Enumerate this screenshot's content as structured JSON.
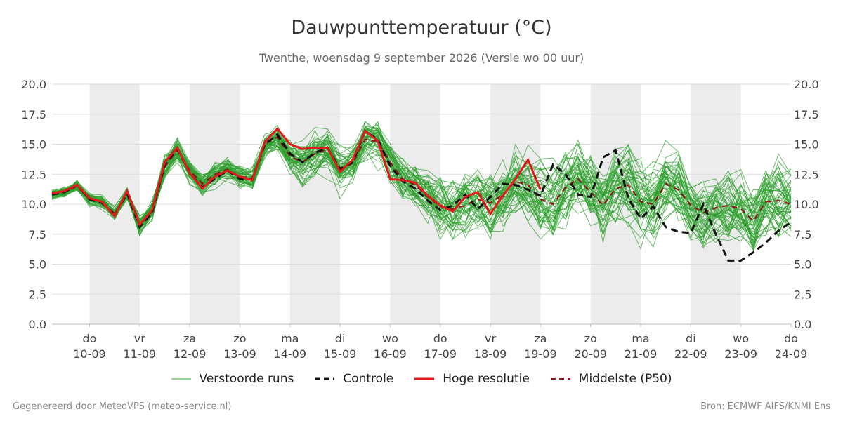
{
  "header": {
    "title": "Dauwpunttemperatuur (°C)",
    "subtitle": "Twenthe, woensdag  9 september 2026 (Versie wo 00 uur)"
  },
  "footer": {
    "left": "Gegenereerd door MeteoVPS (meteo-service.nl)",
    "right": "Bron: ECMWF AIFS/KNMI Ens"
  },
  "legend": [
    {
      "label": "Verstoorde runs",
      "color": "#2ca02c",
      "style": "solid-thin"
    },
    {
      "label": "Controle",
      "color": "#111111",
      "style": "dashed"
    },
    {
      "label": "Hoge resolutie",
      "color": "#e31a1c",
      "style": "solid-thick"
    },
    {
      "label": "Middelste (P50)",
      "color": "#8b1a1a",
      "style": "dashed"
    }
  ],
  "chart_data": {
    "type": "line",
    "ylim": [
      0,
      20
    ],
    "yticks": [
      "0.0",
      "2.5",
      "5.0",
      "7.5",
      "10.0",
      "12.5",
      "15.0",
      "17.5",
      "20.0"
    ],
    "xlim": [
      -0.75,
      14
    ],
    "day_ticks": [
      {
        "day": "do",
        "date": "10-09"
      },
      {
        "day": "vr",
        "date": "11-09"
      },
      {
        "day": "za",
        "date": "12-09"
      },
      {
        "day": "zo",
        "date": "13-09"
      },
      {
        "day": "ma",
        "date": "14-09"
      },
      {
        "day": "di",
        "date": "15-09"
      },
      {
        "day": "wo",
        "date": "16-09"
      },
      {
        "day": "do",
        "date": "17-09"
      },
      {
        "day": "vr",
        "date": "18-09"
      },
      {
        "day": "za",
        "date": "19-09"
      },
      {
        "day": "zo",
        "date": "20-09"
      },
      {
        "day": "ma",
        "date": "21-09"
      },
      {
        "day": "di",
        "date": "22-09"
      },
      {
        "day": "wo",
        "date": "23-09"
      },
      {
        "day": "do",
        "date": "24-09"
      }
    ],
    "shaded_days": [
      0,
      2,
      4,
      6,
      8,
      10,
      12
    ],
    "grid": true,
    "colors": {
      "ensemble": "#2ca02c",
      "control": "#111111",
      "hires": "#e31a1c",
      "median": "#8b1a1a",
      "shade": "#ececec",
      "grid": "#dddddd"
    },
    "series": [
      {
        "name": "Controle",
        "x": [
          -0.75,
          -0.5,
          -0.25,
          0,
          0.25,
          0.5,
          0.75,
          1,
          1.25,
          1.5,
          1.75,
          2,
          2.25,
          2.5,
          2.75,
          3,
          3.25,
          3.5,
          3.75,
          4,
          4.25,
          4.5,
          4.75,
          5,
          5.25,
          5.5,
          5.75,
          6,
          6.25,
          6.5,
          6.75,
          7,
          7.25,
          7.5,
          7.75,
          8,
          8.25,
          8.5,
          8.75,
          9,
          9.25,
          9.5,
          9.75,
          10,
          10.25,
          10.5,
          10.75,
          11,
          11.25,
          11.5,
          11.75,
          12,
          12.25,
          12.5,
          12.75,
          13,
          13.25,
          13.5,
          13.75,
          14
        ],
        "values": [
          10.8,
          11.0,
          11.6,
          10.4,
          10.1,
          9.1,
          10.9,
          8.1,
          9.3,
          13.3,
          14.6,
          12.6,
          11.4,
          12.1,
          12.8,
          12.1,
          12.1,
          15.0,
          15.8,
          14.2,
          13.5,
          14.3,
          14.7,
          12.9,
          13.5,
          16.1,
          15.4,
          13.2,
          11.9,
          11.3,
          10.3,
          9.5,
          9.9,
          10.8,
          9.6,
          10.6,
          11.7,
          11.6,
          11.2,
          10.7,
          13.3,
          12.5,
          10.8,
          10.6,
          13.9,
          14.5,
          10.5,
          8.8,
          9.8,
          8.1,
          7.7,
          7.6,
          10.0,
          7.5,
          5.3,
          5.3,
          6.0,
          6.8,
          7.8,
          8.5
        ]
      },
      {
        "name": "Hoge resolutie",
        "x": [
          -0.75,
          -0.5,
          -0.25,
          0,
          0.25,
          0.5,
          0.75,
          1,
          1.25,
          1.5,
          1.75,
          2,
          2.25,
          2.5,
          2.75,
          3,
          3.25,
          3.5,
          3.75,
          4,
          4.25,
          4.5,
          4.75,
          5,
          5.25,
          5.5,
          5.75,
          6,
          6.25,
          6.5,
          6.75,
          7,
          7.25,
          7.5,
          7.75,
          8,
          8.25,
          8.5,
          8.75,
          9
        ],
        "values": [
          10.9,
          11.1,
          11.6,
          10.5,
          10.2,
          9.0,
          11.1,
          8.3,
          9.5,
          13.5,
          14.7,
          12.6,
          11.3,
          12.3,
          12.8,
          12.3,
          12.0,
          15.2,
          16.3,
          15.0,
          14.6,
          14.7,
          14.7,
          12.7,
          13.7,
          16.1,
          15.3,
          12.1,
          12.0,
          11.8,
          10.7,
          9.9,
          9.4,
          10.6,
          11.0,
          9.2,
          10.7,
          12.1,
          13.7,
          11.2
        ]
      },
      {
        "name": "Middelste (P50)",
        "x": [
          -0.75,
          -0.5,
          -0.25,
          0,
          0.25,
          0.5,
          0.75,
          1,
          1.25,
          1.5,
          1.75,
          2,
          2.25,
          2.5,
          2.75,
          3,
          3.25,
          3.5,
          3.75,
          4,
          4.25,
          4.5,
          4.75,
          5,
          5.25,
          5.5,
          5.75,
          6,
          6.25,
          6.5,
          6.75,
          7,
          7.25,
          7.5,
          7.75,
          8,
          8.25,
          8.5,
          8.75,
          9,
          9.25,
          9.5,
          9.75,
          10,
          10.25,
          10.5,
          10.75,
          11,
          11.25,
          11.5,
          11.75,
          12,
          12.25,
          12.5,
          12.75,
          13,
          13.25,
          13.5,
          13.75,
          14
        ],
        "values": [
          10.8,
          11.0,
          11.5,
          10.4,
          10.2,
          9.2,
          10.8,
          8.2,
          9.4,
          13.1,
          14.5,
          12.8,
          11.7,
          12.5,
          12.9,
          12.3,
          12.2,
          15.0,
          15.6,
          14.0,
          13.5,
          14.2,
          14.6,
          13.0,
          13.4,
          15.4,
          15.2,
          13.5,
          12.1,
          11.6,
          10.6,
          9.8,
          9.6,
          9.9,
          10.4,
          10.1,
          10.8,
          11.9,
          11.6,
          10.4,
          10.0,
          11.4,
          12.1,
          11.0,
          9.9,
          11.3,
          11.6,
          10.2,
          10.0,
          11.7,
          11.2,
          9.9,
          9.3,
          9.7,
          9.9,
          9.6,
          8.6,
          10.2,
          10.3,
          10.0
        ]
      }
    ]
  }
}
